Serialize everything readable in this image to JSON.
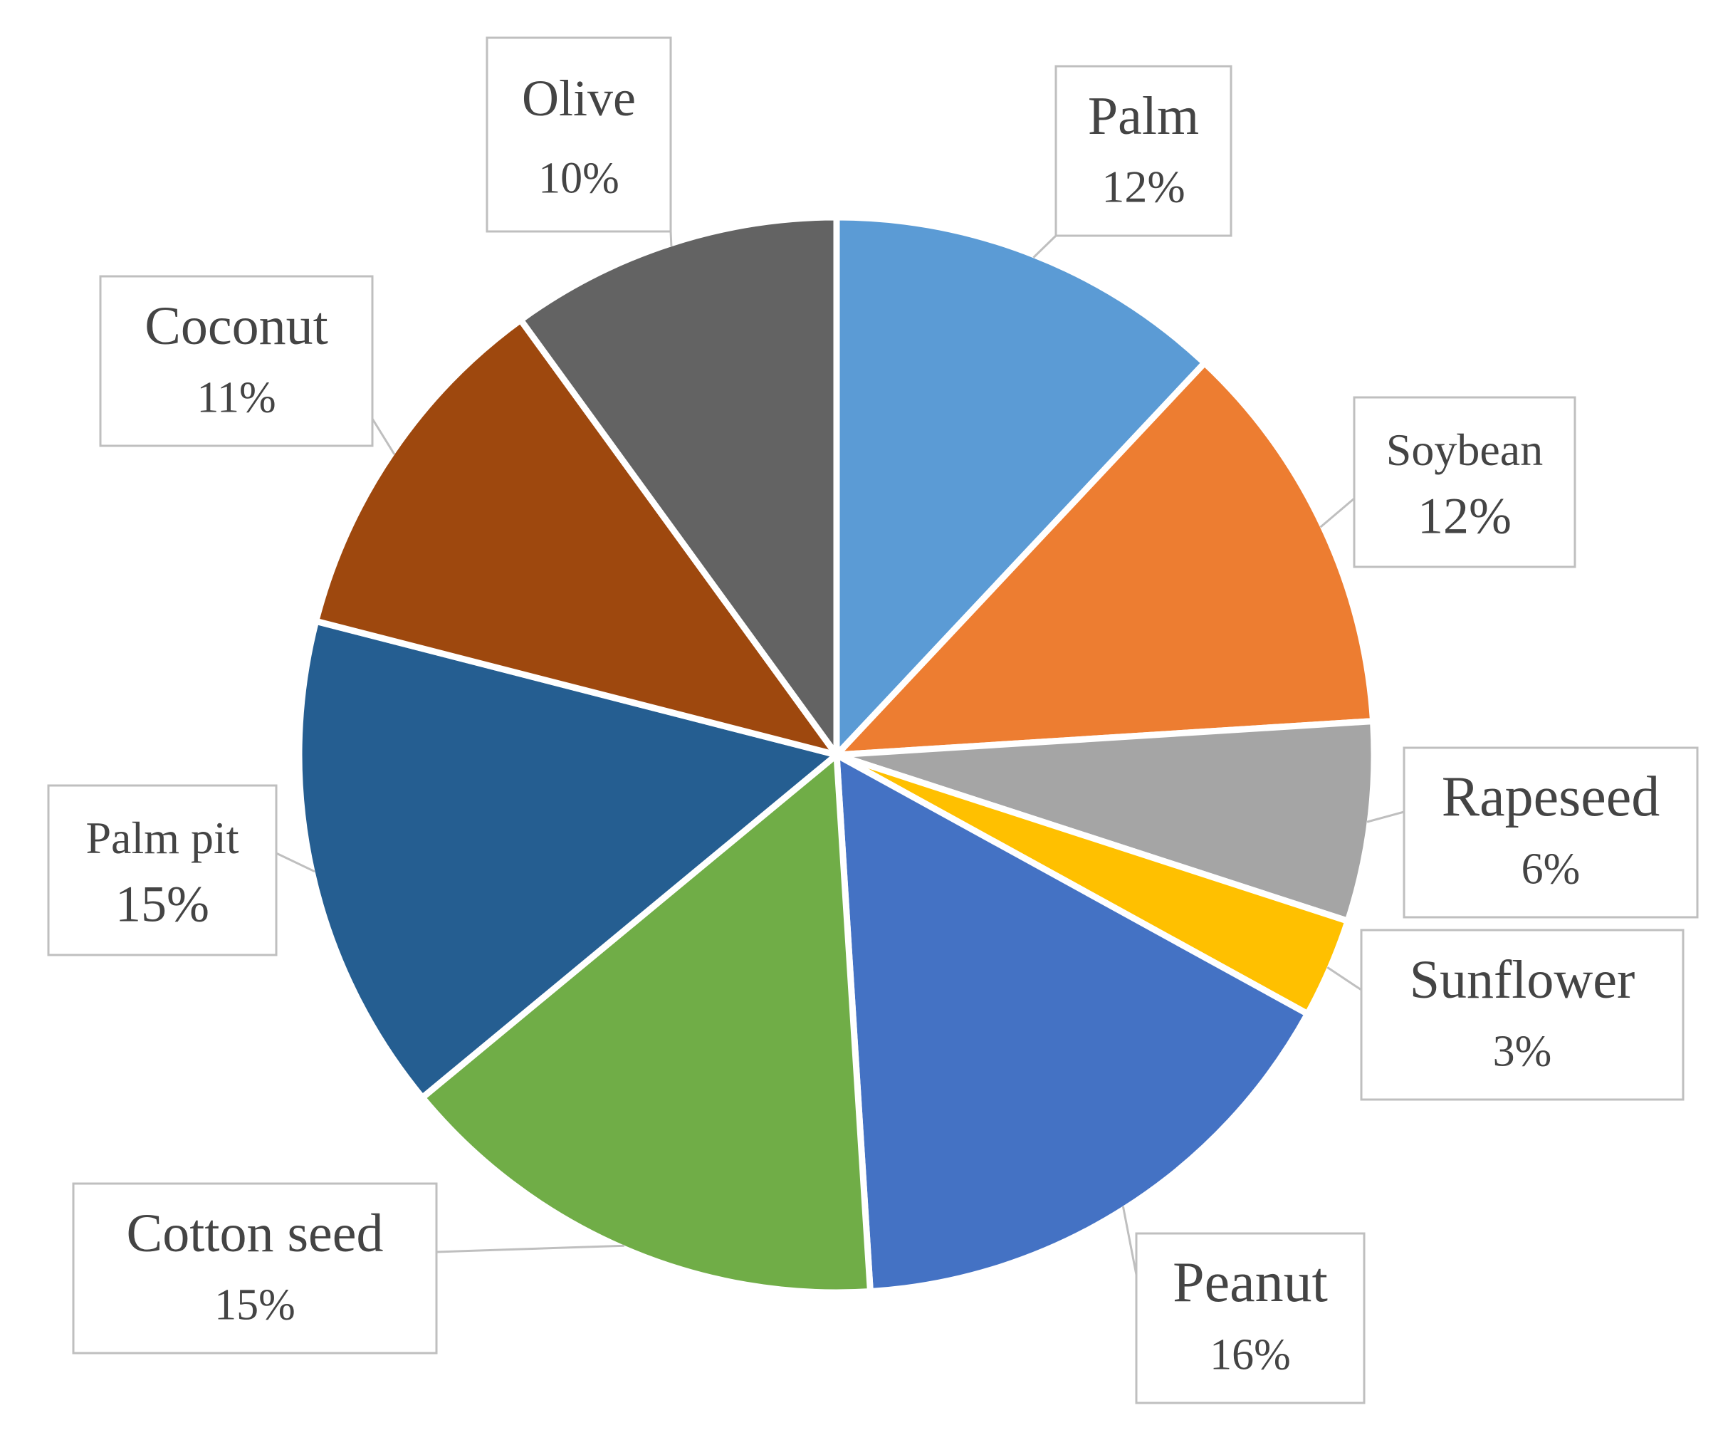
{
  "chart_data": {
    "type": "pie",
    "title": "",
    "slices": [
      {
        "name": "Palm",
        "label": "Palm",
        "value": 12,
        "value_label": "12%",
        "color": "#5B9BD5"
      },
      {
        "name": "Soybean",
        "label": "Soybean",
        "value": 12,
        "value_label": "12%",
        "color": "#ED7D31"
      },
      {
        "name": "Rapeseed",
        "label": "Rapeseed",
        "value": 6,
        "value_label": "6%",
        "color": "#A5A5A5"
      },
      {
        "name": "Sunflower",
        "label": "Sunflower",
        "value": 3,
        "value_label": "3%",
        "color": "#FFC000"
      },
      {
        "name": "Peanut",
        "label": "Peanut",
        "value": 16,
        "value_label": "16%",
        "color": "#4472C4"
      },
      {
        "name": "Cotton seed",
        "label": "Cotton seed",
        "value": 15,
        "value_label": "15%",
        "color": "#70AD47"
      },
      {
        "name": "Palm pit",
        "label": "Palm pit",
        "value": 15,
        "value_label": "15%",
        "color": "#255E91"
      },
      {
        "name": "Coconut",
        "label": "Coconut",
        "value": 11,
        "value_label": "11%",
        "color": "#9E480E"
      },
      {
        "name": "Olive",
        "label": "Olive",
        "value": 10,
        "value_label": "10%",
        "color": "#636363"
      }
    ],
    "legend": "none",
    "data_labels": "callout boxes outside slices"
  }
}
